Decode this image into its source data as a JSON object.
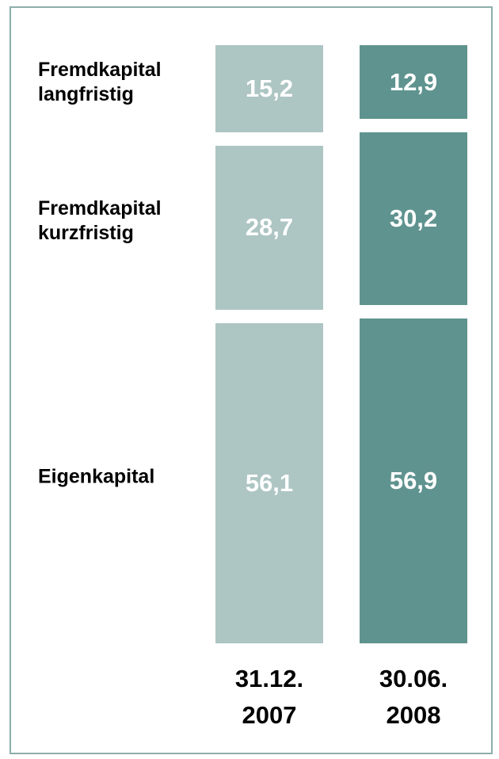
{
  "chart_data": {
    "type": "stacked_bar",
    "categories": [
      "31.12.\n2007",
      "30.06.\n2008"
    ],
    "colors": [
      "#adc5c3",
      "#5f938f"
    ],
    "series": [
      {
        "name": "Eigenkapital",
        "values": [
          56.1,
          56.9
        ],
        "value_labels": [
          "56,1",
          "56,9"
        ]
      },
      {
        "name": "Fremdkapital\nkurzfristig",
        "values": [
          28.7,
          30.2
        ],
        "value_labels": [
          "28,7",
          "30,2"
        ]
      },
      {
        "name": "Fremdkapital\nlangfristig",
        "values": [
          15.2,
          12.9
        ],
        "value_labels": [
          "15,2",
          "12,9"
        ]
      }
    ]
  }
}
